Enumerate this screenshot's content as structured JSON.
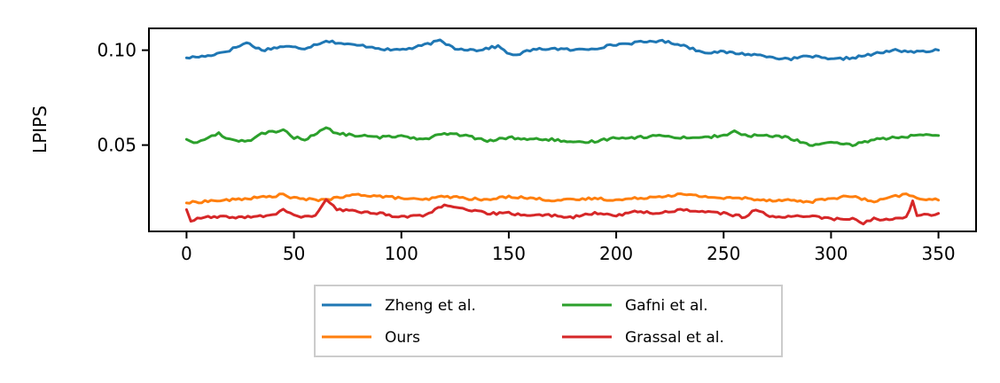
{
  "chart_data": {
    "type": "line",
    "title": "",
    "xlabel": "",
    "ylabel": "LPIPS",
    "xlim": [
      -17.5,
      367.5
    ],
    "ylim": [
      0.0045,
      0.1115
    ],
    "xticks": [
      0,
      50,
      100,
      150,
      200,
      250,
      300,
      350
    ],
    "yticks": [
      0.05,
      0.1
    ],
    "xtick_labels": [
      "0",
      "50",
      "100",
      "150",
      "200",
      "250",
      "300",
      "350"
    ],
    "ytick_labels": [
      "0.05",
      "0.10"
    ],
    "grid": false,
    "legend_placement": "below",
    "legend_columns": 2,
    "series": [
      {
        "name": "Zheng et al.",
        "color": "#1f77b4",
        "x": [
          0,
          10,
          20,
          28,
          35,
          45,
          55,
          65,
          75,
          85,
          95,
          105,
          118,
          125,
          135,
          145,
          152,
          160,
          170,
          180,
          190,
          200,
          210,
          220,
          230,
          240,
          250,
          260,
          270,
          280,
          290,
          300,
          310,
          320,
          330,
          340,
          350
        ],
        "y": [
          0.096,
          0.097,
          0.1,
          0.104,
          0.1,
          0.102,
          0.101,
          0.105,
          0.103,
          0.102,
          0.1,
          0.101,
          0.105,
          0.101,
          0.1,
          0.102,
          0.097,
          0.1,
          0.101,
          0.1,
          0.101,
          0.103,
          0.104,
          0.105,
          0.103,
          0.099,
          0.099,
          0.098,
          0.097,
          0.095,
          0.097,
          0.095,
          0.096,
          0.098,
          0.1,
          0.099,
          0.1
        ]
      },
      {
        "name": "Ours",
        "color": "#ff7f0e",
        "x": [
          0,
          10,
          20,
          30,
          40,
          45,
          50,
          60,
          70,
          80,
          90,
          100,
          110,
          120,
          130,
          140,
          150,
          160,
          170,
          180,
          190,
          200,
          210,
          220,
          230,
          240,
          250,
          260,
          270,
          280,
          290,
          300,
          310,
          320,
          330,
          335,
          340,
          350
        ],
        "y": [
          0.0195,
          0.0205,
          0.021,
          0.022,
          0.023,
          0.024,
          0.022,
          0.021,
          0.022,
          0.024,
          0.023,
          0.022,
          0.021,
          0.023,
          0.022,
          0.021,
          0.023,
          0.022,
          0.021,
          0.021,
          0.022,
          0.021,
          0.022,
          0.023,
          0.024,
          0.023,
          0.022,
          0.022,
          0.021,
          0.021,
          0.02,
          0.022,
          0.023,
          0.02,
          0.023,
          0.024,
          0.022,
          0.021
        ]
      },
      {
        "name": "Gafni et al.",
        "color": "#2ca02c",
        "x": [
          0,
          5,
          10,
          15,
          20,
          30,
          35,
          40,
          45,
          50,
          55,
          65,
          70,
          80,
          90,
          100,
          110,
          120,
          130,
          140,
          150,
          160,
          170,
          180,
          190,
          200,
          210,
          220,
          230,
          240,
          250,
          255,
          260,
          270,
          280,
          290,
          300,
          310,
          320,
          330,
          340,
          350
        ],
        "y": [
          0.053,
          0.051,
          0.054,
          0.056,
          0.053,
          0.052,
          0.056,
          0.057,
          0.058,
          0.054,
          0.053,
          0.059,
          0.056,
          0.055,
          0.054,
          0.055,
          0.053,
          0.056,
          0.055,
          0.052,
          0.054,
          0.053,
          0.053,
          0.051,
          0.052,
          0.054,
          0.054,
          0.055,
          0.054,
          0.054,
          0.055,
          0.057,
          0.055,
          0.055,
          0.054,
          0.05,
          0.051,
          0.05,
          0.053,
          0.054,
          0.055,
          0.055
        ]
      },
      {
        "name": "Grassal et al.",
        "color": "#d62728",
        "x": [
          0,
          2,
          5,
          10,
          20,
          30,
          40,
          45,
          50,
          55,
          60,
          65,
          70,
          80,
          90,
          100,
          110,
          120,
          130,
          140,
          150,
          160,
          170,
          180,
          190,
          200,
          210,
          220,
          230,
          240,
          250,
          260,
          265,
          270,
          280,
          290,
          300,
          310,
          315,
          320,
          330,
          335,
          338,
          340,
          345,
          350
        ],
        "y": [
          0.016,
          0.01,
          0.011,
          0.012,
          0.012,
          0.012,
          0.013,
          0.016,
          0.013,
          0.012,
          0.013,
          0.021,
          0.016,
          0.015,
          0.014,
          0.012,
          0.013,
          0.018,
          0.016,
          0.014,
          0.014,
          0.013,
          0.013,
          0.012,
          0.014,
          0.013,
          0.015,
          0.014,
          0.016,
          0.015,
          0.014,
          0.012,
          0.016,
          0.013,
          0.012,
          0.013,
          0.011,
          0.011,
          0.009,
          0.011,
          0.011,
          0.012,
          0.02,
          0.013,
          0.013,
          0.014
        ]
      }
    ]
  }
}
